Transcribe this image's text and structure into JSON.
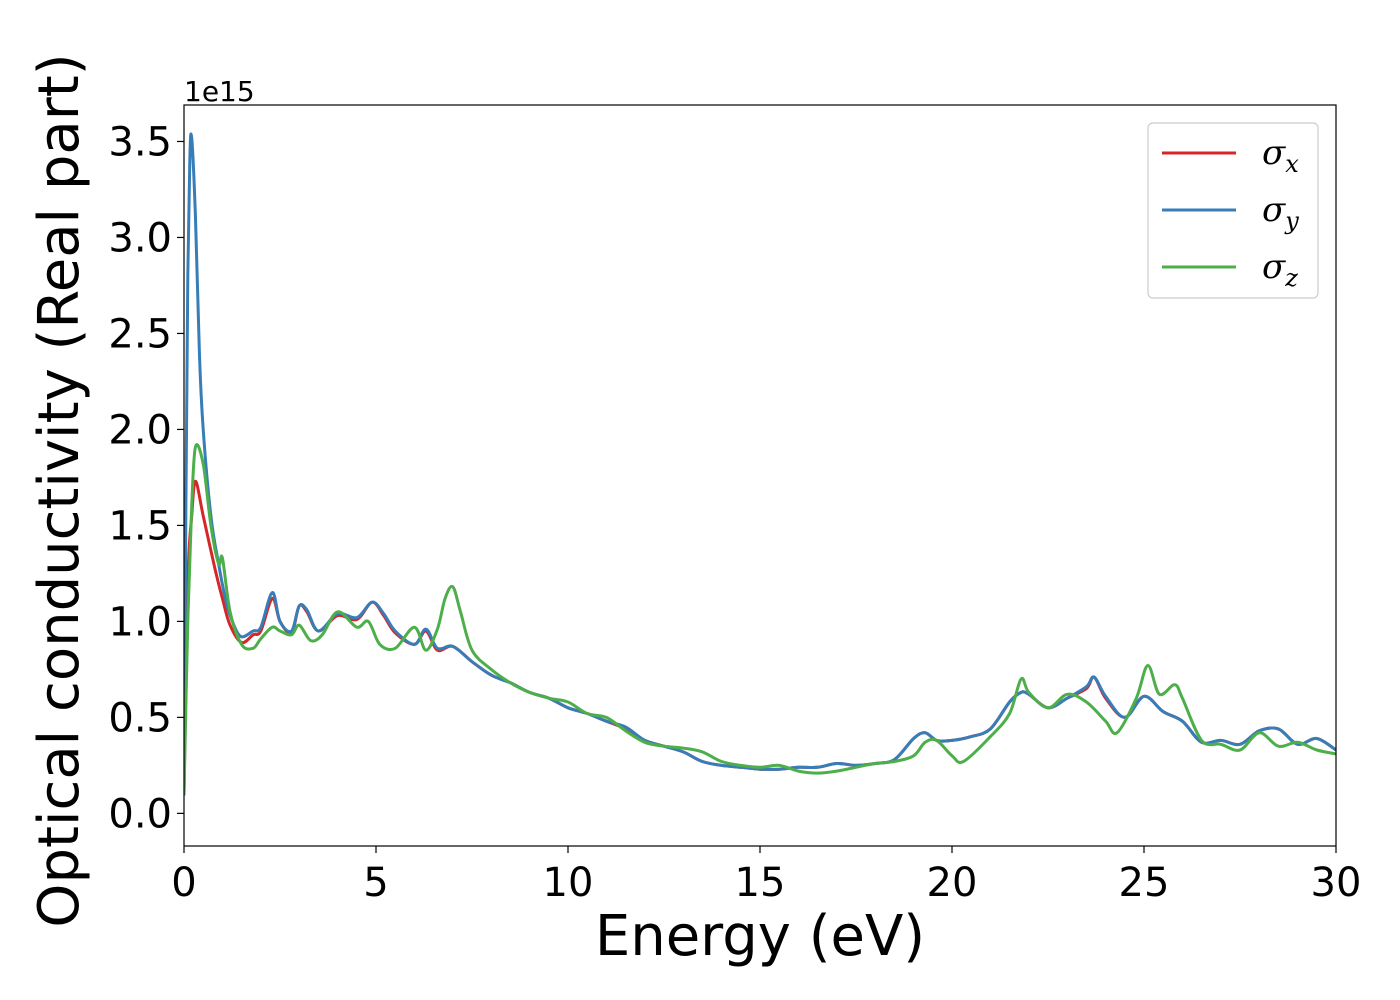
{
  "chart_data": {
    "type": "line",
    "xlabel": "Energy (eV)",
    "ylabel": "Optical conductivity (Real part)",
    "y_offset_label": "1e15",
    "xlim": [
      0,
      30
    ],
    "ylim": [
      -0.17,
      3.69
    ],
    "x_ticks": [
      0,
      5,
      10,
      15,
      20,
      25,
      30
    ],
    "x_tick_labels": [
      "0",
      "5",
      "10",
      "15",
      "20",
      "25",
      "30"
    ],
    "y_ticks": [
      0.0,
      0.5,
      1.0,
      1.5,
      2.0,
      2.5,
      3.0,
      3.5
    ],
    "y_tick_labels": [
      "0.0",
      "0.5",
      "1.0",
      "1.5",
      "2.0",
      "2.5",
      "3.0",
      "3.5"
    ],
    "grid": false,
    "legend_position": "top-right",
    "series": [
      {
        "name": "σx",
        "legend": {
          "base": "σ",
          "sub": "x"
        },
        "color": "#d62728",
        "x": [
          0,
          0.1,
          0.2,
          0.3,
          0.5,
          0.8,
          1.0,
          1.2,
          1.5,
          1.8,
          2.0,
          2.3,
          2.5,
          2.8,
          3.0,
          3.2,
          3.5,
          4.0,
          4.5,
          4.9,
          5.2,
          5.5,
          6.0,
          6.3,
          6.6,
          7.0,
          7.5,
          8.0,
          8.5,
          9.0,
          9.5,
          10.0,
          10.5,
          11.0,
          11.5,
          12.0,
          12.5,
          13.0,
          13.5,
          14.0,
          14.5,
          15.0,
          15.5,
          16.0,
          16.5,
          17.0,
          17.5,
          18.0,
          18.5,
          19.0,
          19.3,
          19.6,
          20.0,
          20.5,
          21.0,
          21.5,
          21.8,
          22.0,
          22.5,
          23.0,
          23.5,
          23.7,
          24.0,
          24.5,
          25.0,
          25.5,
          26.0,
          26.5,
          27.0,
          27.5,
          28.0,
          28.5,
          29.0,
          29.5,
          30.0
        ],
        "y": [
          0.1,
          1.2,
          1.55,
          1.73,
          1.55,
          1.28,
          1.12,
          0.98,
          0.89,
          0.93,
          0.95,
          1.12,
          1.0,
          0.94,
          1.08,
          1.05,
          0.95,
          1.03,
          1.01,
          1.1,
          1.03,
          0.94,
          0.88,
          0.95,
          0.85,
          0.87,
          0.79,
          0.72,
          0.68,
          0.63,
          0.6,
          0.55,
          0.52,
          0.48,
          0.44,
          0.38,
          0.35,
          0.32,
          0.27,
          0.25,
          0.24,
          0.23,
          0.23,
          0.24,
          0.24,
          0.26,
          0.25,
          0.26,
          0.28,
          0.39,
          0.42,
          0.38,
          0.38,
          0.4,
          0.44,
          0.58,
          0.63,
          0.62,
          0.55,
          0.6,
          0.65,
          0.71,
          0.6,
          0.5,
          0.61,
          0.53,
          0.48,
          0.37,
          0.38,
          0.36,
          0.43,
          0.44,
          0.36,
          0.39,
          0.33
        ]
      },
      {
        "name": "σy",
        "legend": {
          "base": "σ",
          "sub": "y"
        },
        "color": "#377eb8",
        "x": [
          0,
          0.05,
          0.1,
          0.15,
          0.2,
          0.3,
          0.4,
          0.5,
          0.7,
          0.9,
          1.1,
          1.3,
          1.5,
          1.8,
          2.0,
          2.3,
          2.5,
          2.8,
          3.0,
          3.2,
          3.5,
          4.0,
          4.5,
          4.9,
          5.2,
          5.5,
          6.0,
          6.3,
          6.6,
          7.0,
          7.5,
          8.0,
          8.5,
          9.0,
          9.5,
          10.0,
          10.5,
          11.0,
          11.5,
          12.0,
          12.5,
          13.0,
          13.5,
          14.0,
          14.5,
          15.0,
          15.5,
          16.0,
          16.5,
          17.0,
          17.5,
          18.0,
          18.5,
          19.0,
          19.3,
          19.6,
          20.0,
          20.5,
          21.0,
          21.5,
          21.8,
          22.0,
          22.5,
          23.0,
          23.5,
          23.7,
          24.0,
          24.5,
          25.0,
          25.5,
          26.0,
          26.5,
          27.0,
          27.5,
          28.0,
          28.5,
          29.0,
          29.5,
          30.0
        ],
        "y": [
          0.1,
          1.6,
          2.8,
          3.4,
          3.52,
          3.1,
          2.4,
          2.0,
          1.55,
          1.3,
          1.1,
          0.98,
          0.92,
          0.95,
          0.97,
          1.15,
          1.0,
          0.95,
          1.08,
          1.06,
          0.95,
          1.04,
          1.02,
          1.1,
          1.04,
          0.95,
          0.88,
          0.96,
          0.86,
          0.87,
          0.79,
          0.72,
          0.68,
          0.63,
          0.6,
          0.55,
          0.52,
          0.48,
          0.45,
          0.38,
          0.35,
          0.32,
          0.27,
          0.25,
          0.24,
          0.23,
          0.23,
          0.24,
          0.24,
          0.26,
          0.25,
          0.26,
          0.28,
          0.39,
          0.42,
          0.38,
          0.38,
          0.4,
          0.44,
          0.58,
          0.63,
          0.62,
          0.55,
          0.6,
          0.66,
          0.71,
          0.61,
          0.5,
          0.61,
          0.53,
          0.48,
          0.37,
          0.38,
          0.36,
          0.43,
          0.44,
          0.36,
          0.39,
          0.33
        ]
      },
      {
        "name": "σz",
        "legend": {
          "base": "σ",
          "sub": "z"
        },
        "color": "#4daf4a",
        "x": [
          0,
          0.1,
          0.2,
          0.3,
          0.5,
          0.7,
          0.9,
          1.0,
          1.2,
          1.5,
          1.8,
          2.0,
          2.3,
          2.5,
          2.8,
          3.0,
          3.3,
          3.6,
          4.0,
          4.5,
          4.8,
          5.1,
          5.5,
          6.0,
          6.3,
          6.6,
          6.8,
          7.0,
          7.2,
          7.5,
          8.0,
          8.5,
          9.0,
          9.5,
          10.0,
          10.5,
          11.0,
          11.5,
          12.0,
          12.5,
          13.0,
          13.5,
          14.0,
          14.5,
          15.0,
          15.5,
          16.0,
          16.5,
          17.0,
          17.5,
          18.0,
          18.5,
          19.0,
          19.3,
          19.6,
          20.0,
          20.3,
          21.0,
          21.5,
          21.8,
          22.0,
          22.5,
          23.0,
          23.5,
          24.0,
          24.3,
          24.8,
          25.1,
          25.4,
          25.8,
          26.0,
          26.5,
          27.0,
          27.5,
          28.0,
          28.5,
          29.0,
          29.5,
          30.0
        ],
        "y": [
          0.1,
          1.0,
          1.6,
          1.91,
          1.82,
          1.5,
          1.3,
          1.33,
          1.05,
          0.88,
          0.86,
          0.91,
          0.97,
          0.95,
          0.93,
          0.98,
          0.9,
          0.93,
          1.05,
          0.97,
          1.0,
          0.88,
          0.86,
          0.97,
          0.85,
          0.96,
          1.12,
          1.18,
          1.05,
          0.85,
          0.75,
          0.68,
          0.63,
          0.6,
          0.58,
          0.52,
          0.5,
          0.43,
          0.37,
          0.35,
          0.34,
          0.32,
          0.27,
          0.25,
          0.24,
          0.25,
          0.22,
          0.21,
          0.22,
          0.24,
          0.26,
          0.27,
          0.3,
          0.37,
          0.38,
          0.3,
          0.27,
          0.4,
          0.52,
          0.7,
          0.63,
          0.55,
          0.62,
          0.58,
          0.48,
          0.42,
          0.6,
          0.77,
          0.62,
          0.67,
          0.6,
          0.38,
          0.36,
          0.33,
          0.42,
          0.35,
          0.37,
          0.33,
          0.31
        ]
      }
    ]
  }
}
